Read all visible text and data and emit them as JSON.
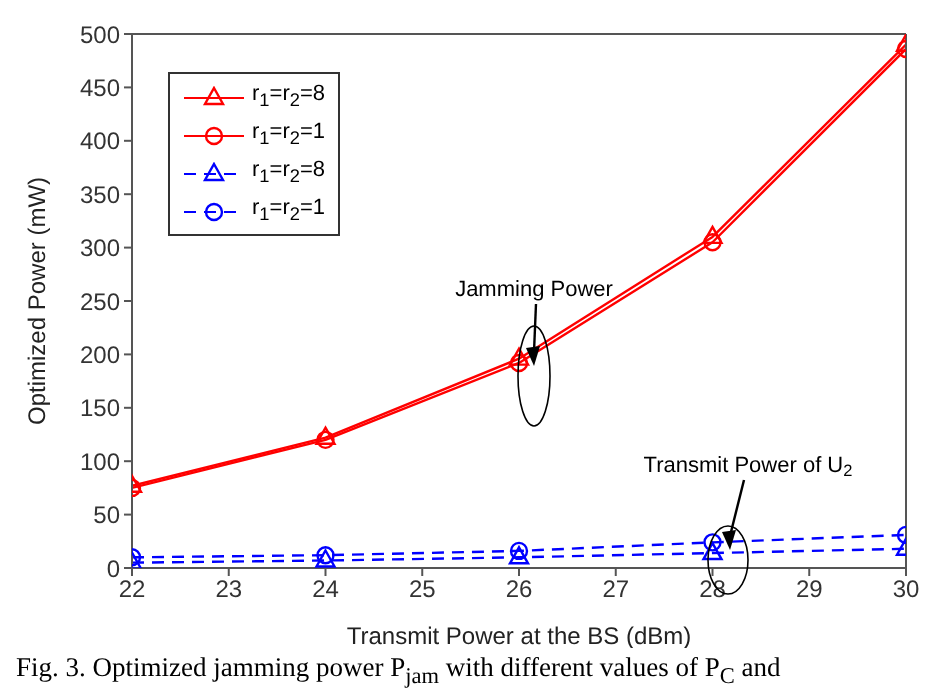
{
  "chart_data": {
    "type": "line",
    "xlabel": "Transmit Power at the BS (dBm)",
    "ylabel": "Optimized Power (mW)",
    "x": [
      22,
      24,
      26,
      28,
      30
    ],
    "series": [
      {
        "name": "r$_{1}$=r$_{2}$=8",
        "color": "#ff0000",
        "marker": "triangle",
        "line_style": "solid",
        "values": [
          77,
          122,
          196,
          310,
          490
        ]
      },
      {
        "name": "r$_{1}$=r$_{2}$=1",
        "color": "#ff0000",
        "marker": "circle",
        "line_style": "solid",
        "values": [
          75,
          120,
          192,
          305,
          486
        ]
      },
      {
        "name": "r$_{1}$=r$_{2}$=8",
        "color": "#0000ff",
        "marker": "triangle",
        "line_style": "dashed",
        "values": [
          5,
          7,
          10,
          14,
          18
        ]
      },
      {
        "name": "r$_{1}$=r$_{2}$=1",
        "color": "#0000ff",
        "marker": "circle",
        "line_style": "dashed",
        "values": [
          10,
          12,
          16,
          24,
          31
        ]
      }
    ],
    "xlim": [
      22,
      30
    ],
    "xticks": [
      22,
      23,
      24,
      25,
      26,
      27,
      28,
      29,
      30
    ],
    "ylim": [
      0,
      500
    ],
    "yticks": [
      0,
      50,
      100,
      150,
      200,
      250,
      300,
      350,
      400,
      450,
      500
    ],
    "grid": false,
    "legend": "top left",
    "annotations": [
      "Jamming Power",
      "Transmit Power of U$_{2}$",
      "Fig. 3.   Optimized jamming power P$_{jam}$ with different values of P$_{C}$ and"
    ]
  }
}
